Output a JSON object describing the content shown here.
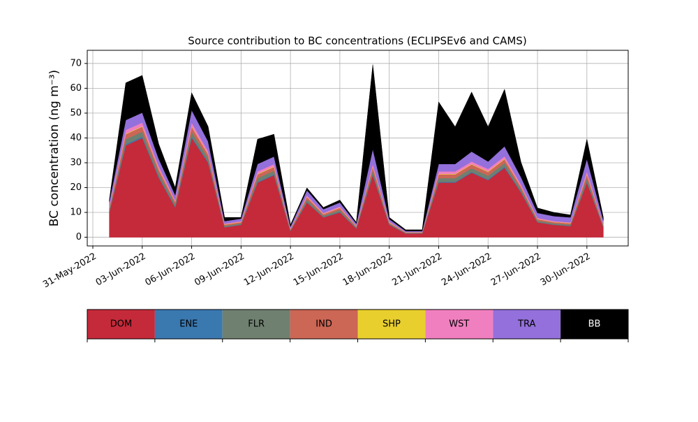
{
  "chart_data": {
    "type": "stacked_area",
    "title": "Source contribution to BC concentrations (ECLIPSEv6 and CAMS)",
    "y_label": "BC concentration (ng m⁻³)",
    "x": [
      "2022-06-01",
      "2022-06-02",
      "2022-06-03",
      "2022-06-04",
      "2022-06-05",
      "2022-06-06",
      "2022-06-07",
      "2022-06-08",
      "2022-06-09",
      "2022-06-10",
      "2022-06-11",
      "2022-06-12",
      "2022-06-13",
      "2022-06-14",
      "2022-06-15",
      "2022-06-16",
      "2022-06-17",
      "2022-06-18",
      "2022-06-19",
      "2022-06-20",
      "2022-06-21",
      "2022-06-22",
      "2022-06-23",
      "2022-06-24",
      "2022-06-25",
      "2022-06-26",
      "2022-06-27",
      "2022-06-28",
      "2022-06-29",
      "2022-06-30",
      "2022-07-01"
    ],
    "series": [
      {
        "name": "DOM",
        "color": "#c52a3a",
        "values": [
          10,
          37,
          40,
          24,
          12,
          40,
          30,
          4,
          5,
          22,
          25,
          2.5,
          14,
          8,
          10,
          3.5,
          25,
          5,
          1.5,
          1.5,
          22,
          22,
          26,
          23,
          28,
          18,
          6,
          5,
          4.5,
          22,
          4
        ]
      },
      {
        "name": "ENE",
        "color": "#3a78b0",
        "values": [
          0.2,
          0.5,
          0.5,
          0.4,
          0.3,
          0.5,
          0.4,
          0.1,
          0.1,
          0.3,
          0.3,
          0.1,
          0.2,
          0.1,
          0.2,
          0.1,
          0.3,
          0.1,
          0.05,
          0.05,
          0.3,
          0.3,
          0.3,
          0.3,
          0.4,
          0.3,
          0.1,
          0.1,
          0.1,
          0.3,
          0.1
        ]
      },
      {
        "name": "FLR",
        "color": "#6f8070",
        "values": [
          0.8,
          2,
          2,
          1.5,
          1,
          2,
          1.5,
          0.5,
          0.5,
          1.5,
          1.5,
          0.3,
          1,
          0.6,
          0.8,
          0.4,
          1.5,
          0.4,
          0.2,
          0.2,
          1.5,
          1.5,
          1.5,
          1.5,
          1.5,
          1,
          0.6,
          0.5,
          0.5,
          1.5,
          0.4
        ]
      },
      {
        "name": "IND",
        "color": "#cc6655",
        "values": [
          0.8,
          2,
          2,
          1.5,
          1,
          2,
          1.5,
          0.5,
          0.5,
          1.5,
          1.5,
          0.3,
          1,
          0.6,
          0.8,
          0.4,
          1.5,
          0.4,
          0.2,
          0.2,
          1.5,
          1.5,
          1.5,
          1.5,
          1.5,
          1,
          0.6,
          0.5,
          0.5,
          1.5,
          0.4
        ]
      },
      {
        "name": "SHP",
        "color": "#e8cf2e",
        "values": [
          0.1,
          0.2,
          0.2,
          0.2,
          0.1,
          0.2,
          0.2,
          0.1,
          0.1,
          0.2,
          0.2,
          0.1,
          0.1,
          0.1,
          0.1,
          0.1,
          0.2,
          0.1,
          0.05,
          0.05,
          0.2,
          0.2,
          0.2,
          0.2,
          0.2,
          0.1,
          0.1,
          0.1,
          0.1,
          0.2,
          0.1
        ]
      },
      {
        "name": "WST",
        "color": "#f07fbf",
        "values": [
          0.5,
          1.5,
          1.5,
          1,
          0.6,
          1.5,
          1,
          0.3,
          0.3,
          1,
          1,
          0.2,
          0.6,
          0.4,
          0.5,
          0.2,
          1,
          0.3,
          0.1,
          0.1,
          1,
          1,
          1,
          1,
          1,
          0.8,
          0.4,
          0.3,
          0.3,
          1,
          0.3
        ]
      },
      {
        "name": "TRA",
        "color": "#9370db",
        "values": [
          2,
          4,
          4,
          3,
          2,
          5,
          4,
          1,
          1,
          3,
          3,
          0.8,
          2,
          1.5,
          1.6,
          0.8,
          6,
          1,
          0.4,
          0.4,
          3,
          3,
          4,
          3,
          4,
          3,
          2,
          2,
          2,
          5,
          1.5
        ]
      },
      {
        "name": "BB",
        "color": "#000000",
        "values": [
          0.6,
          15,
          15,
          6,
          3,
          7,
          6,
          1.5,
          0.5,
          10,
          9,
          0.7,
          1,
          0.7,
          1,
          0.5,
          34,
          0.7,
          0.5,
          0.5,
          25,
          15,
          24,
          14,
          23,
          6,
          2,
          1.5,
          1,
          8,
          1.2
        ]
      }
    ],
    "xlim": [
      "2022-05-31",
      "2022-07-02"
    ],
    "xticks": [
      {
        "value": "2022-05-31",
        "label": "31-May-2022"
      },
      {
        "value": "2022-06-03",
        "label": "03-Jun-2022"
      },
      {
        "value": "2022-06-06",
        "label": "06-Jun-2022"
      },
      {
        "value": "2022-06-09",
        "label": "09-Jun-2022"
      },
      {
        "value": "2022-06-12",
        "label": "12-Jun-2022"
      },
      {
        "value": "2022-06-15",
        "label": "15-Jun-2022"
      },
      {
        "value": "2022-06-18",
        "label": "18-Jun-2022"
      },
      {
        "value": "2022-06-21",
        "label": "21-Jun-2022"
      },
      {
        "value": "2022-06-24",
        "label": "24-Jun-2022"
      },
      {
        "value": "2022-06-27",
        "label": "27-Jun-2022"
      },
      {
        "value": "2022-06-30",
        "label": "30-Jun-2022"
      }
    ],
    "ylim": [
      -3.5,
      75.3
    ],
    "yticks": [
      0,
      10,
      20,
      30,
      40,
      50,
      60,
      70
    ],
    "grid": true
  }
}
